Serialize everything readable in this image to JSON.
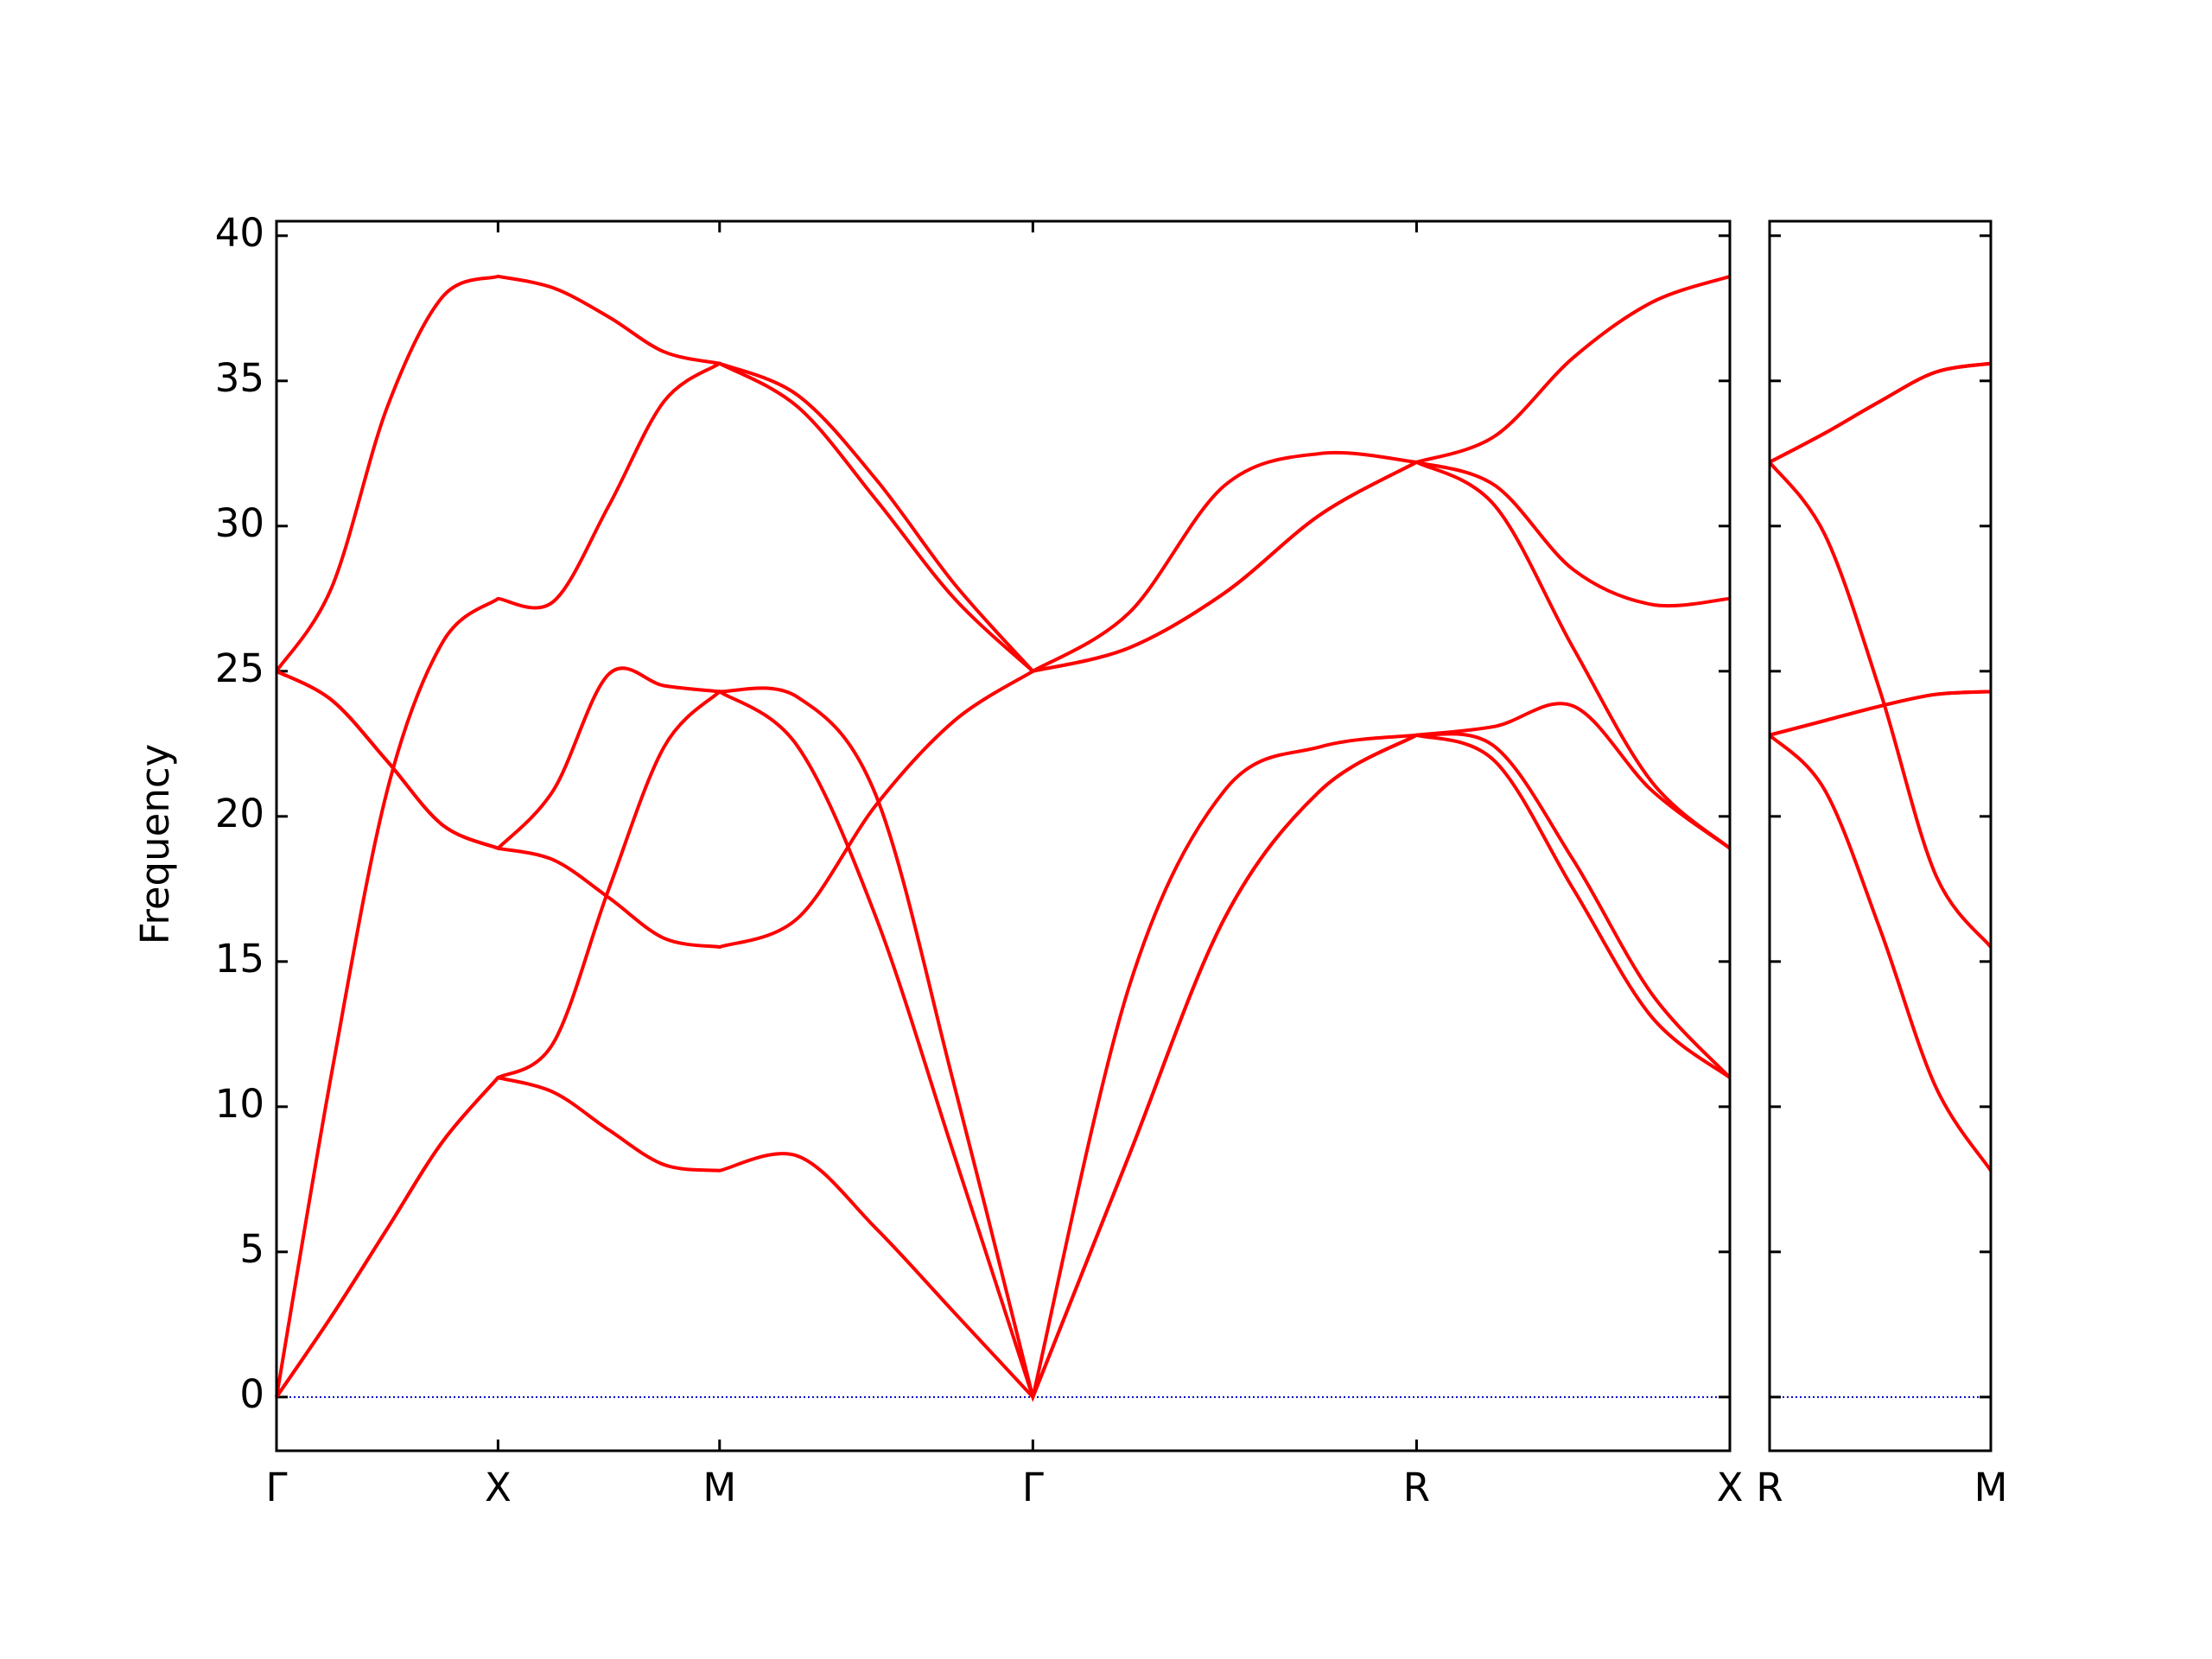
{
  "chart_data": [
    {
      "type": "line",
      "ylabel": "Frequency",
      "x": [
        0,
        0.125,
        0.25,
        0.375,
        0.5,
        0.625,
        0.75,
        0.875,
        1.0,
        1.1768,
        1.3536,
        1.5303,
        1.7071,
        1.9236,
        2.1401,
        2.3566,
        2.5731,
        2.7499,
        2.9267,
        3.1034,
        3.2802
      ],
      "xlim": [
        0,
        3.2802
      ],
      "xticks": [
        {
          "value": 0,
          "label": "Γ"
        },
        {
          "value": 0.5,
          "label": "X"
        },
        {
          "value": 1.0,
          "label": "M"
        },
        {
          "value": 1.7071,
          "label": "Γ"
        },
        {
          "value": 2.5731,
          "label": "R"
        },
        {
          "value": 3.2802,
          "label": "X"
        }
      ],
      "ylim": [
        -1.85,
        40.5
      ],
      "yticks": [
        0,
        5,
        10,
        15,
        20,
        25,
        30,
        35,
        40
      ],
      "ytick_labels": true,
      "hline": 0,
      "hline_color": "#0000cc",
      "series": [
        {
          "color": "#ff0000",
          "values": [
            25,
            27.9,
            34.1,
            37.9,
            38.6,
            38.2,
            37.2,
            36.0,
            35.6,
            34.1,
            30.9,
            27.5,
            25,
            27.0,
            31.4,
            32.5,
            32.2,
            33.1,
            35.8,
            37.7,
            38.6
          ]
        },
        {
          "color": "#ff0000",
          "values": [
            0,
            11.2,
            20.9,
            26.0,
            27.5,
            27.4,
            30.7,
            34.3,
            35.6,
            34.5,
            31.6,
            28.0,
            25,
            25.8,
            27.7,
            30.4,
            32.2,
            31.4,
            28.5,
            27.3,
            27.5
          ]
        },
        {
          "color": "#ff0000",
          "values": [
            25,
            24.0,
            21.9,
            19.7,
            18.9,
            20.9,
            24.9,
            24.5,
            24.3,
            24.1,
            20.7,
            10.7,
            0,
            14.1,
            20.9,
            22.4,
            22.8,
            23.1,
            23.8,
            20.9,
            18.9
          ]
        },
        {
          "color": "#ff0000",
          "values": [
            25,
            24.0,
            21.9,
            19.7,
            18.9,
            18.5,
            17.2,
            15.8,
            15.5,
            16.5,
            20.4,
            23.3,
            25,
            25.8,
            27.7,
            30.4,
            32.2,
            30.7,
            25.8,
            21.2,
            18.9
          ]
        },
        {
          "color": "#ff0000",
          "values": [
            0,
            2.8,
            5.8,
            8.8,
            11.0,
            12.2,
            17.5,
            22.4,
            24.3,
            22.4,
            16.5,
            8.3,
            0,
            8.3,
            16.5,
            20.9,
            22.8,
            21.9,
            17.5,
            13.1,
            11.0
          ]
        },
        {
          "color": "#ff0000",
          "values": [
            0,
            2.8,
            5.8,
            8.8,
            11.0,
            10.5,
            9.2,
            8.0,
            7.8,
            8.3,
            5.8,
            2.9,
            0,
            8.3,
            16.5,
            20.9,
            22.8,
            22.4,
            18.5,
            13.9,
            11.0
          ]
        }
      ]
    },
    {
      "type": "line",
      "x": [
        0,
        0.1768,
        0.3536,
        0.5303,
        0.7071
      ],
      "xlim": [
        0,
        0.7071
      ],
      "xticks": [
        {
          "value": 0,
          "label": "R"
        },
        {
          "value": 0.7071,
          "label": "M"
        }
      ],
      "ylim": [
        -1.85,
        40.5
      ],
      "yticks": [
        0,
        5,
        10,
        15,
        20,
        25,
        30,
        35,
        40
      ],
      "ytick_labels": false,
      "hline": 0,
      "hline_color": "#0000cc",
      "series": [
        {
          "color": "#ff0000",
          "values": [
            32.2,
            33.2,
            34.3,
            35.3,
            35.6
          ]
        },
        {
          "color": "#ff0000",
          "values": [
            32.2,
            33.2,
            34.3,
            35.3,
            35.6
          ]
        },
        {
          "color": "#ff0000",
          "values": [
            32.2,
            29.7,
            24.3,
            18.0,
            15.5
          ]
        },
        {
          "color": "#ff0000",
          "values": [
            22.8,
            23.3,
            23.8,
            24.2,
            24.3
          ]
        },
        {
          "color": "#ff0000",
          "values": [
            22.8,
            23.3,
            23.8,
            24.2,
            24.3
          ]
        },
        {
          "color": "#ff0000",
          "values": [
            22.8,
            20.9,
            16.1,
            10.7,
            7.8
          ]
        }
      ]
    }
  ]
}
